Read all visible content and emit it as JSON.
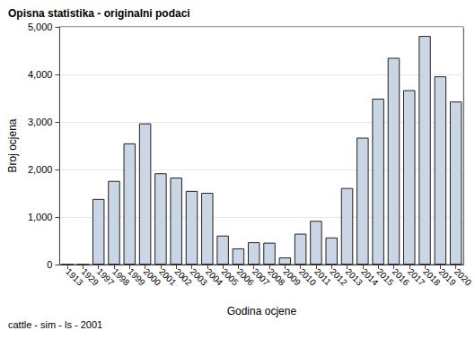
{
  "chart_data": {
    "type": "bar",
    "title": "Opisna statistika - originalni podaci",
    "footnote": "cattle - sim - ls - 2001",
    "x_label": "Godina ocjene",
    "y_label": "Broj ocjena",
    "categories": [
      "1913",
      "1929",
      "1997",
      "1998",
      "1999",
      "2000",
      "2001",
      "2002",
      "2003",
      "2004",
      "2005",
      "2006",
      "2007",
      "2008",
      "2009",
      "2010",
      "2011",
      "2012",
      "2013",
      "2014",
      "2015",
      "2016",
      "2017",
      "2018",
      "2019",
      "2020"
    ],
    "values": [
      2,
      2,
      1380,
      1760,
      2550,
      2970,
      1920,
      1830,
      1550,
      1510,
      610,
      340,
      470,
      460,
      150,
      650,
      920,
      570,
      1610,
      2670,
      3490,
      4350,
      3670,
      4810,
      3960,
      3430
    ],
    "color": "#cad5e5",
    "ylim": [
      0,
      5000
    ],
    "yticks": [
      0,
      1000,
      2000,
      3000,
      4000,
      5000
    ],
    "grid": true
  }
}
